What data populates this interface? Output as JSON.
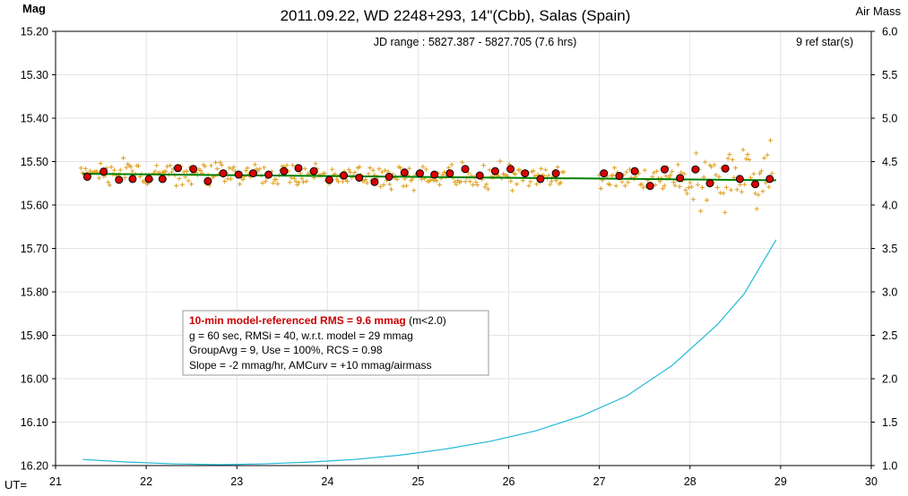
{
  "chart_data": {
    "type": "scatter",
    "title": "2011.09.22, WD 2248+293, 14\"(Cbb), Salas (Spain)",
    "ylabel": "Mag",
    "y2label": "Air Mass",
    "xlabel": "UT=",
    "xlim": [
      21,
      30
    ],
    "ylim": [
      15.2,
      16.2
    ],
    "y_inverted": true,
    "y2lim": [
      1.0,
      6.0
    ],
    "xticks": [
      "21",
      "22",
      "23",
      "24",
      "25",
      "26",
      "27",
      "28",
      "29",
      "30"
    ],
    "yticks": [
      "15.20",
      "15.30",
      "15.40",
      "15.50",
      "15.60",
      "15.70",
      "15.80",
      "15.90",
      "16.00",
      "16.10",
      "16.20"
    ],
    "y2ticks": [
      "6.0",
      "5.5",
      "5.0",
      "4.5",
      "4.0",
      "3.5",
      "3.0",
      "2.5",
      "2.0",
      "1.5",
      "1.0"
    ],
    "grid": true,
    "jd_range": "JD range : 5827.387 - 5827.705 (7.6 hrs)",
    "ref_stars": "9 ref star(s)",
    "info_box": {
      "rms": "10-min model-referenced RMS = 9.6 mmag",
      "rms_suffix": " (m<2.0)",
      "line2": "g = 60 sec, RMSi = 40, w.r.t. model = 29 mmag",
      "line3": "GroupAvg = 9, Use = 100%, RCS = 0.98",
      "line4": "Slope = -2 mmag/hr, AMCurv = +10 mmag/airmass"
    },
    "colors": {
      "individual": "#e0a020",
      "group_avg": "#dd0000",
      "model": "#008000",
      "airmass": "#20b8d8",
      "rms_text": "#cc0000",
      "jd_text": "#2a2a8a"
    },
    "series": [
      {
        "name": "group averages",
        "x": [
          21.35,
          21.53,
          21.7,
          21.85,
          22.03,
          22.18,
          22.35,
          22.52,
          22.68,
          22.85,
          23.02,
          23.18,
          23.35,
          23.52,
          23.68,
          23.85,
          24.02,
          24.18,
          24.35,
          24.52,
          24.68,
          24.85,
          25.02,
          25.18,
          25.35,
          25.52,
          25.68,
          25.85,
          26.02,
          26.18,
          26.35,
          26.52,
          27.05,
          27.22,
          27.39,
          27.56,
          27.72,
          27.89,
          28.06,
          28.22,
          28.39,
          28.55,
          28.72,
          28.88
        ],
        "y": [
          15.535,
          15.523,
          15.542,
          15.54,
          15.54,
          15.54,
          15.515,
          15.517,
          15.545,
          15.527,
          15.53,
          15.527,
          15.53,
          15.522,
          15.515,
          15.522,
          15.542,
          15.532,
          15.537,
          15.547,
          15.535,
          15.525,
          15.527,
          15.53,
          15.527,
          15.517,
          15.532,
          15.522,
          15.517,
          15.527,
          15.54,
          15.527,
          15.527,
          15.533,
          15.522,
          15.556,
          15.518,
          15.538,
          15.518,
          15.55,
          15.516,
          15.54,
          15.552,
          15.54
        ]
      },
      {
        "name": "model",
        "x": [
          21.3,
          28.95
        ],
        "y": [
          15.528,
          15.543
        ]
      },
      {
        "name": "air mass",
        "x": [
          21.3,
          21.8,
          22.3,
          22.8,
          23.3,
          23.8,
          24.3,
          24.8,
          25.3,
          25.8,
          26.3,
          26.8,
          27.3,
          27.8,
          28.3,
          28.6,
          28.95
        ],
        "y": [
          1.07,
          1.04,
          1.02,
          1.01,
          1.02,
          1.04,
          1.07,
          1.12,
          1.19,
          1.28,
          1.4,
          1.57,
          1.8,
          2.15,
          2.62,
          2.98,
          3.6
        ]
      }
    ]
  }
}
